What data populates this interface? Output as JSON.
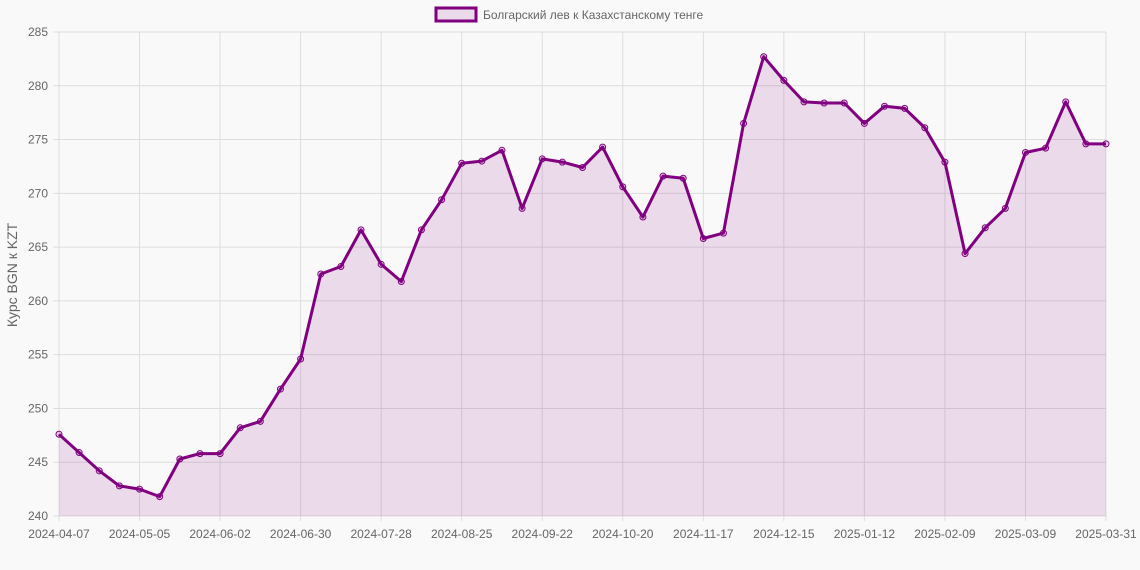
{
  "legend": {
    "label": "Болгарский лев к Казахстанскому тенге"
  },
  "colors": {
    "line": "#800080",
    "fill": "rgba(128,0,128,0.12)",
    "grid": "#dddddd",
    "background": "#f9f9f9"
  },
  "chart_data": {
    "type": "area",
    "title": "",
    "xlabel": "",
    "ylabel": "Курс BGN к KZT",
    "ylim": [
      240,
      285
    ],
    "y_ticks": [
      240,
      245,
      250,
      255,
      260,
      265,
      270,
      275,
      280,
      285
    ],
    "x_tick_labels": [
      "2024-04-07",
      "2024-05-05",
      "2024-06-02",
      "2024-06-30",
      "2024-07-28",
      "2024-08-25",
      "2024-09-22",
      "2024-10-20",
      "2024-11-17",
      "2024-12-15",
      "2025-01-12",
      "2025-02-09",
      "2025-03-09",
      "2025-03-31"
    ],
    "x_tick_indices": [
      0,
      4,
      8,
      12,
      16,
      20,
      24,
      28,
      32,
      36,
      40,
      44,
      48,
      52
    ],
    "grid": true,
    "legend_position": "top",
    "series": [
      {
        "name": "Болгарский лев к Казахстанскому тенге",
        "values": [
          247.6,
          245.9,
          244.2,
          242.8,
          242.5,
          241.8,
          245.3,
          245.8,
          245.8,
          248.2,
          248.8,
          251.8,
          254.6,
          262.5,
          263.2,
          266.6,
          263.4,
          261.8,
          266.6,
          269.4,
          272.8,
          273.0,
          274.0,
          268.6,
          273.2,
          272.9,
          272.4,
          274.3,
          270.6,
          267.8,
          271.6,
          271.4,
          265.8,
          266.3,
          276.5,
          282.7,
          280.5,
          278.5,
          278.4,
          278.4,
          276.5,
          278.1,
          277.9,
          276.1,
          272.9,
          264.4,
          266.8,
          268.6,
          273.8,
          274.2,
          278.5,
          274.6,
          274.6
        ]
      }
    ]
  }
}
